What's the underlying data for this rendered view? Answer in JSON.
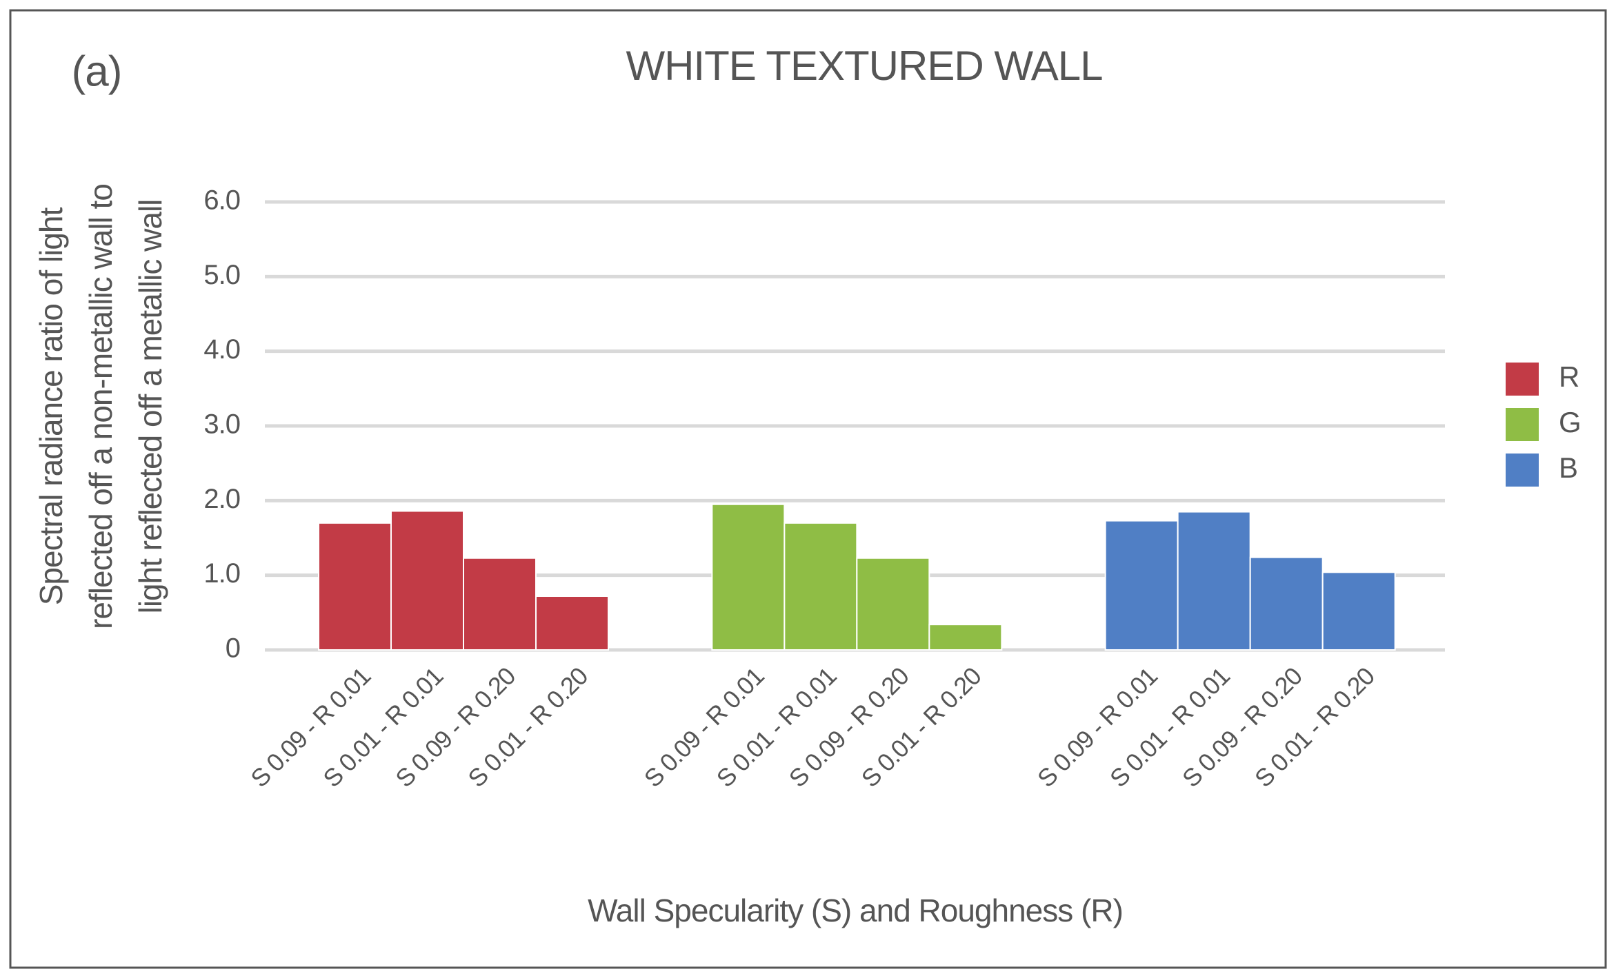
{
  "chart_data": {
    "type": "bar",
    "annotation": "(a)",
    "title": "WHITE TEXTURED WALL",
    "x_label": "Wall Specularity (S) and Roughness (R)",
    "y_label": [
      "Spectral radiance ratio of light",
      "reflected off a non-metallic wall to",
      "light reflected off a metallic wall"
    ],
    "categories": [
      "S 0.09 - R 0.01",
      "S 0.01 - R 0.01",
      "S 0.09 - R 0.20",
      "S 0.01 - R 0.20"
    ],
    "series": [
      {
        "name": "R",
        "color": "#c23b46",
        "values": [
          1.7,
          1.86,
          1.23,
          0.72
        ]
      },
      {
        "name": "G",
        "color": "#8fbd45",
        "values": [
          1.95,
          1.7,
          1.23,
          0.34
        ]
      },
      {
        "name": "B",
        "color": "#507fc5",
        "values": [
          1.73,
          1.85,
          1.24,
          1.04
        ]
      }
    ],
    "ylim": [
      0,
      6
    ],
    "yticks": [
      0,
      {
        "value": 1,
        "label": "1.0"
      },
      {
        "value": 2,
        "label": "2.0"
      },
      {
        "value": 3,
        "label": "3.0"
      },
      {
        "value": 4,
        "label": "4.0"
      },
      {
        "value": 5,
        "label": "5.0"
      },
      {
        "value": 6,
        "label": "6.0"
      }
    ],
    "grid": true,
    "legend_position": "right"
  }
}
